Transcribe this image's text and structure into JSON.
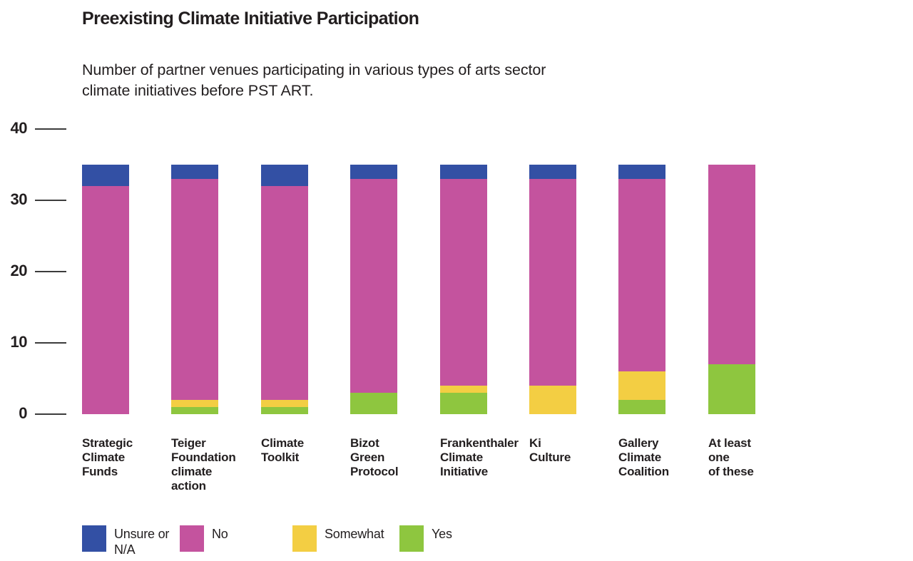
{
  "title": "Preexisting Climate Initiative Participation",
  "subtitle": "Number of partner venues participating in various types of arts sector climate initiatives before PST ART.",
  "colors": {
    "unsure_na": "#3350a4",
    "no": "#c4539e",
    "somewhat": "#f3ce43",
    "yes": "#8ec63f",
    "text": "#221e1f",
    "tick_line": "#3c3c3c",
    "background": "#ffffff"
  },
  "y_axis": {
    "tick_labels": [
      "40",
      "30",
      "20",
      "10",
      "0"
    ],
    "range": [
      0,
      40
    ]
  },
  "legend": [
    {
      "label": "Unsure or N/A",
      "color": "#3350a4"
    },
    {
      "label": "No",
      "color": "#c4539e"
    },
    {
      "label": "Somewhat",
      "color": "#f3ce43"
    },
    {
      "label": "Yes",
      "color": "#8ec63f"
    }
  ],
  "chart_data": {
    "type": "bar",
    "stacked": true,
    "title": "Preexisting Climate Initiative Participation",
    "subtitle": "Number of partner venues participating in various types of arts sector climate initiatives before PST ART.",
    "categories": [
      "Strategic Climate Funds",
      "Teiger Foundation climate action",
      "Climate Toolkit",
      "Bizot Green Protocol",
      "Frankenthaler Climate Initiative",
      "Ki Culture",
      "Gallery Climate Coalition",
      "At least one of these"
    ],
    "category_label_lines": [
      [
        "Strategic",
        "Climate",
        "Funds"
      ],
      [
        "Teiger",
        "Foundation",
        "climate",
        "action"
      ],
      [
        "Climate",
        "Toolkit"
      ],
      [
        "Bizot",
        "Green",
        "Protocol"
      ],
      [
        "Frankenthaler",
        "Climate",
        "Initiative"
      ],
      [
        "Ki",
        "Culture"
      ],
      [
        "Gallery",
        "Climate",
        "Coalition"
      ],
      [
        "At least",
        "one",
        "of these"
      ]
    ],
    "series": [
      {
        "name": "Yes",
        "color": "#8ec63f",
        "values": [
          0,
          1,
          1,
          3,
          3,
          0,
          2,
          7
        ]
      },
      {
        "name": "Somewhat",
        "color": "#f3ce43",
        "values": [
          0,
          1,
          1,
          0,
          1,
          4,
          4,
          0
        ]
      },
      {
        "name": "No",
        "color": "#c4539e",
        "values": [
          32,
          31,
          30,
          30,
          29,
          29,
          27,
          28
        ]
      },
      {
        "name": "Unsure or N/A",
        "color": "#3350a4",
        "values": [
          3,
          2,
          3,
          2,
          2,
          2,
          2,
          0
        ]
      }
    ],
    "stack_order": "bottom_to_top",
    "totals": [
      35,
      35,
      35,
      35,
      35,
      35,
      35,
      35
    ],
    "ylim": [
      0,
      40
    ],
    "y_ticks": [
      0,
      10,
      20,
      30,
      40
    ],
    "grid": false,
    "legend_position": "bottom"
  }
}
